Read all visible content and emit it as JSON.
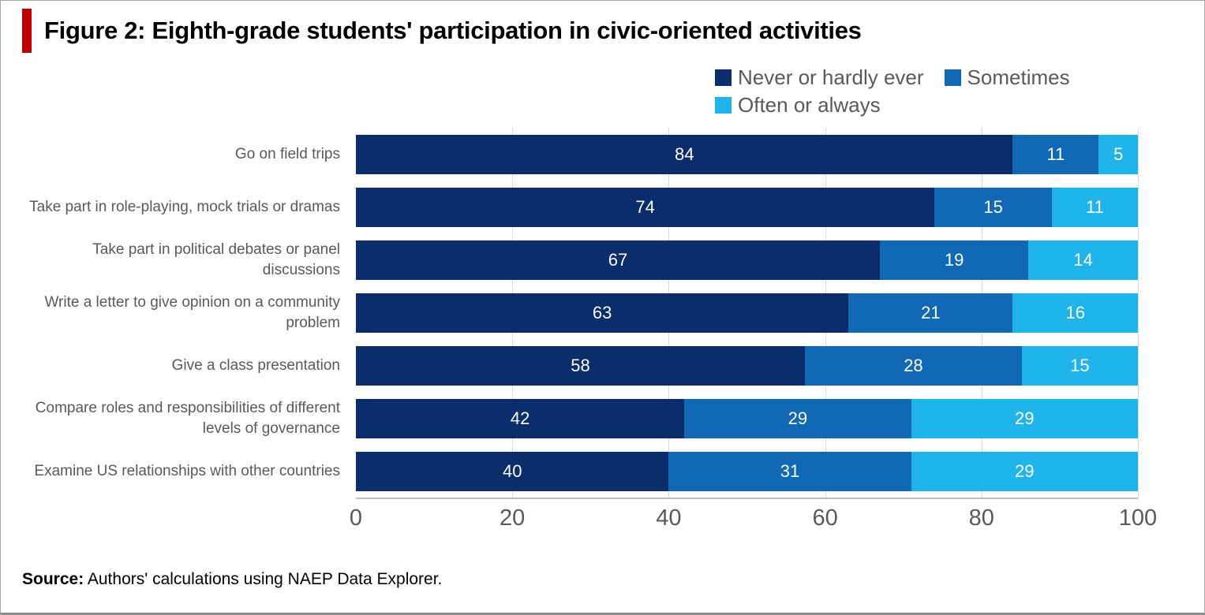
{
  "figure": {
    "title": "Figure 2: Eighth-grade students' participation in civic-oriented activities",
    "source_label": "Source:",
    "source_text": " Authors' calculations using NAEP Data Explorer."
  },
  "colors": {
    "accent": "#c00000",
    "label_text": "#595959",
    "axis_text": "#595959",
    "gridline": "#d9d9d9",
    "axis_line": "#bfbfbf",
    "value_text": "#ffffff"
  },
  "chart_data": {
    "type": "bar",
    "stacked": true,
    "orientation": "horizontal",
    "title": "Figure 2: Eighth-grade students' participation in civic-oriented activities",
    "categories": [
      "Go on field trips",
      "Take part in role-playing, mock trials or dramas",
      "Take part in political debates or panel discussions",
      "Write a letter to give opinion on a community problem",
      "Give a class presentation",
      "Compare roles and responsibilities of different levels of governance",
      "Examine US relationships with other countries"
    ],
    "series": [
      {
        "name": "Never or hardly ever",
        "color": "#0b2d6b",
        "values": [
          84,
          74,
          67,
          63,
          58,
          42,
          40
        ]
      },
      {
        "name": "Sometimes",
        "color": "#1168b4",
        "values": [
          11,
          15,
          19,
          21,
          28,
          29,
          31
        ]
      },
      {
        "name": "Often or always",
        "color": "#1fb4ea",
        "values": [
          5,
          11,
          14,
          16,
          15,
          29,
          29
        ]
      }
    ],
    "xticks": [
      0,
      20,
      40,
      60,
      80,
      100
    ],
    "xlim": [
      0,
      100
    ],
    "legend_position": "top-right",
    "grid": true
  }
}
